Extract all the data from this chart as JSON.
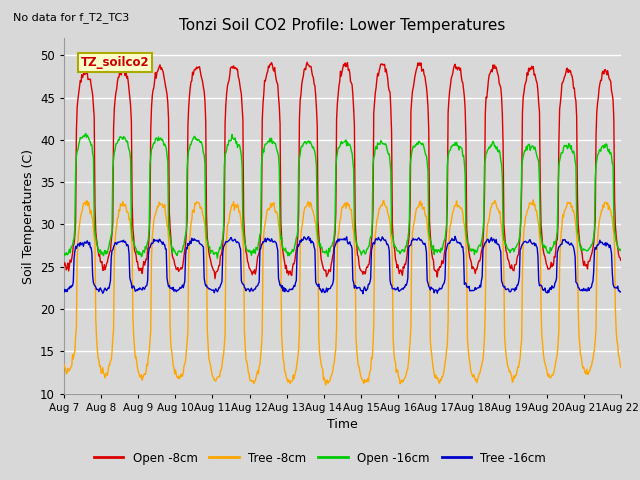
{
  "title": "Tonzi Soil CO2 Profile: Lower Temperatures",
  "subtitle": "No data for f_T2_TC3",
  "inset_label": "TZ_soilco2",
  "xlabel": "Time",
  "ylabel": "Soil Temperatures (C)",
  "ylim": [
    10,
    52
  ],
  "yticks": [
    10,
    15,
    20,
    25,
    30,
    35,
    40,
    45,
    50
  ],
  "x_tick_labels": [
    "Aug 7",
    "Aug 8",
    "Aug 9",
    "Aug 10",
    "Aug 11",
    "Aug 12",
    "Aug 13",
    "Aug 14",
    "Aug 15",
    "Aug 16",
    "Aug 17",
    "Aug 18",
    "Aug 19",
    "Aug 20",
    "Aug 21",
    "Aug 22"
  ],
  "colors": {
    "open_8cm": "#dd0000",
    "tree_8cm": "#ffa500",
    "open_16cm": "#00cc00",
    "tree_16cm": "#0000cc"
  },
  "legend_labels": [
    "Open -8cm",
    "Tree -8cm",
    "Open -16cm",
    "Tree -16cm"
  ],
  "bg_color": "#d8d8d8",
  "plot_bg_color": "#d8d8d8",
  "grid_color": "#ffffff",
  "inset_bg": "#ffffcc",
  "inset_border": "#aaaa00"
}
